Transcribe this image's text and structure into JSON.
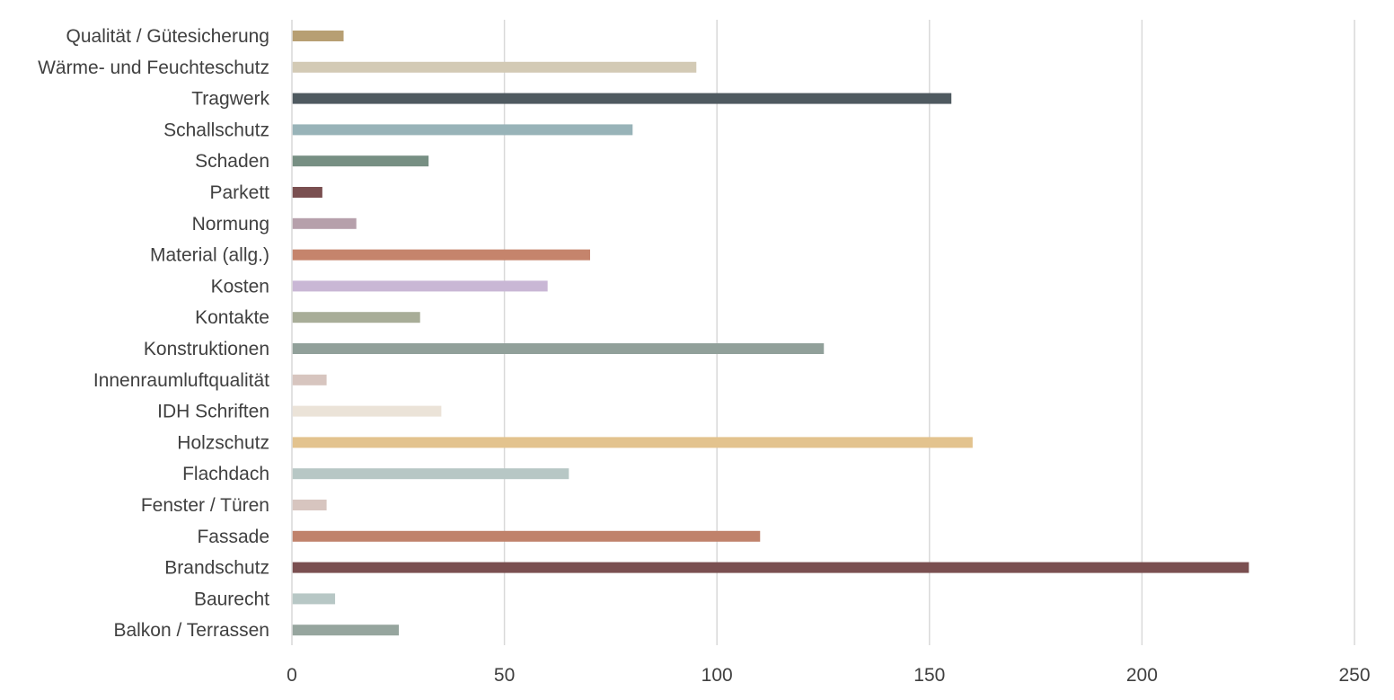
{
  "chart_data": {
    "type": "bar",
    "orientation": "horizontal",
    "title": "",
    "xlabel": "",
    "ylabel": "",
    "xlim": [
      0,
      250
    ],
    "x_ticks": [
      0,
      50,
      100,
      150,
      200,
      250
    ],
    "grid": true,
    "legend": "none",
    "categories": [
      "Qualität / Gütesicherung",
      "Wärme- und Feuchteschutz",
      "Tragwerk",
      "Schallschutz",
      "Schaden",
      "Parkett",
      "Normung",
      "Material (allg.)",
      "Kosten",
      "Kontakte",
      "Konstruktionen",
      "Innenraumluftqualität",
      "IDH Schriften",
      "Holzschutz",
      "Flachdach",
      "Fenster / Türen",
      "Fassade",
      "Brandschutz",
      "Baurecht",
      "Balkon / Terrassen"
    ],
    "values": [
      12,
      95,
      155,
      80,
      32,
      7,
      15,
      70,
      60,
      30,
      125,
      8,
      35,
      160,
      65,
      8,
      110,
      225,
      10,
      25
    ],
    "colors": [
      "#b79f73",
      "#d3cab5",
      "#4f5a60",
      "#98b3b8",
      "#778f83",
      "#7a4f50",
      "#b6a0ab",
      "#c5846c",
      "#c9b7d5",
      "#a8ad98",
      "#91a09a",
      "#d7c5bf",
      "#ebe3d8",
      "#e3c38e",
      "#b7c7c5",
      "#d7c5bf",
      "#c0826b",
      "#7a4f50",
      "#b7c7c5",
      "#96a59e"
    ],
    "gridline_color": "#d9d9d9",
    "text_color": "#404040"
  }
}
